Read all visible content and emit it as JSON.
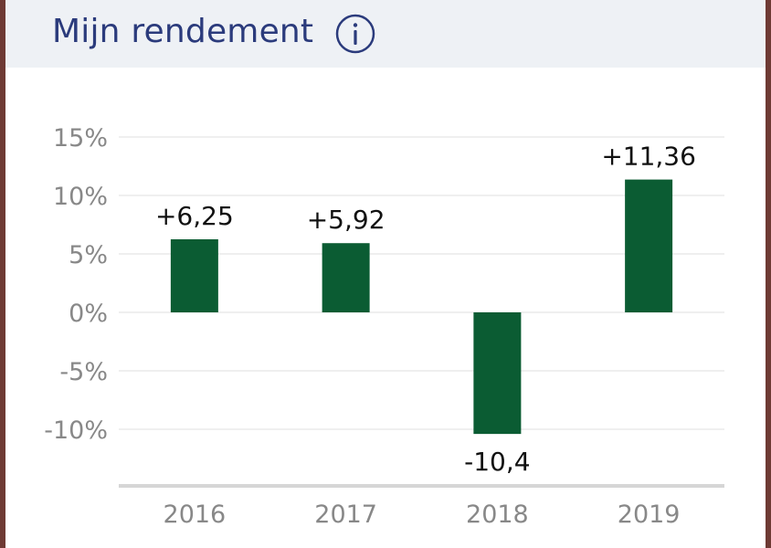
{
  "header": {
    "title": "Mijn rendement",
    "info_icon": "info-circle-icon"
  },
  "colors": {
    "bar": "#0b5c33",
    "title": "#2b3b7c",
    "header_bg": "#eef1f5",
    "grid": "#efefef",
    "axis": "#d6d6d6",
    "tick_text": "#888888"
  },
  "chart_data": {
    "type": "bar",
    "categories": [
      "2016",
      "2017",
      "2018",
      "2019"
    ],
    "values": [
      6.25,
      5.92,
      -10.4,
      11.36
    ],
    "data_labels": [
      "+6,25",
      "+5,92",
      "-10,4",
      "+11,36"
    ],
    "yticks": [
      15,
      10,
      5,
      0,
      -5,
      -10
    ],
    "ytick_labels": [
      "15%",
      "10%",
      "5%",
      "0%",
      "-5%",
      "-10%"
    ],
    "ylim": [
      -14.5,
      15
    ],
    "grid": true,
    "legend": false
  }
}
